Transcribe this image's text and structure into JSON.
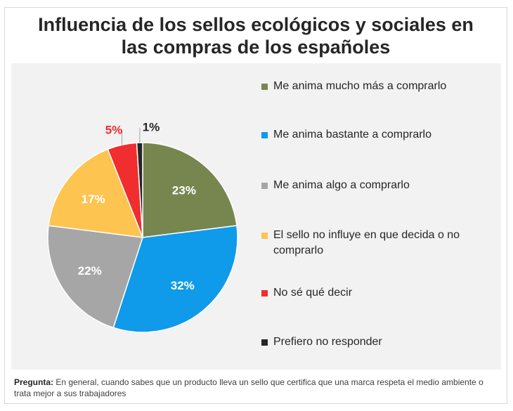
{
  "chart_data": {
    "type": "pie",
    "title": "Influencia de los sellos ecológicos y sociales en\nlas compras de los españoles",
    "slices": [
      {
        "label": "Me anima mucho más a comprarlo",
        "value": 23,
        "display": "23%",
        "color": "#77864f"
      },
      {
        "label": "Me anima bastante a comprarlo",
        "value": 32,
        "display": "32%",
        "color": "#0f9aea"
      },
      {
        "label": "Me anima algo a comprarlo",
        "value": 22,
        "display": "22%",
        "color": "#a6a6a6"
      },
      {
        "label": "El sello no influye en que decida o no comprarlo",
        "value": 17,
        "display": "17%",
        "color": "#fdc44f"
      },
      {
        "label": "No sé qué decir",
        "value": 5,
        "display": "5%",
        "color": "#f02d2f"
      },
      {
        "label": "Prefiero no responder",
        "value": 1,
        "display": "1%",
        "color": "#262626"
      }
    ],
    "legend_position": "right"
  },
  "footer": {
    "label": "Pregunta:",
    "text": " En general, cuando sabes que un producto lleva un sello que certifica que una marca respeta el medio ambiente o trata mejor a sus trabajadores"
  }
}
